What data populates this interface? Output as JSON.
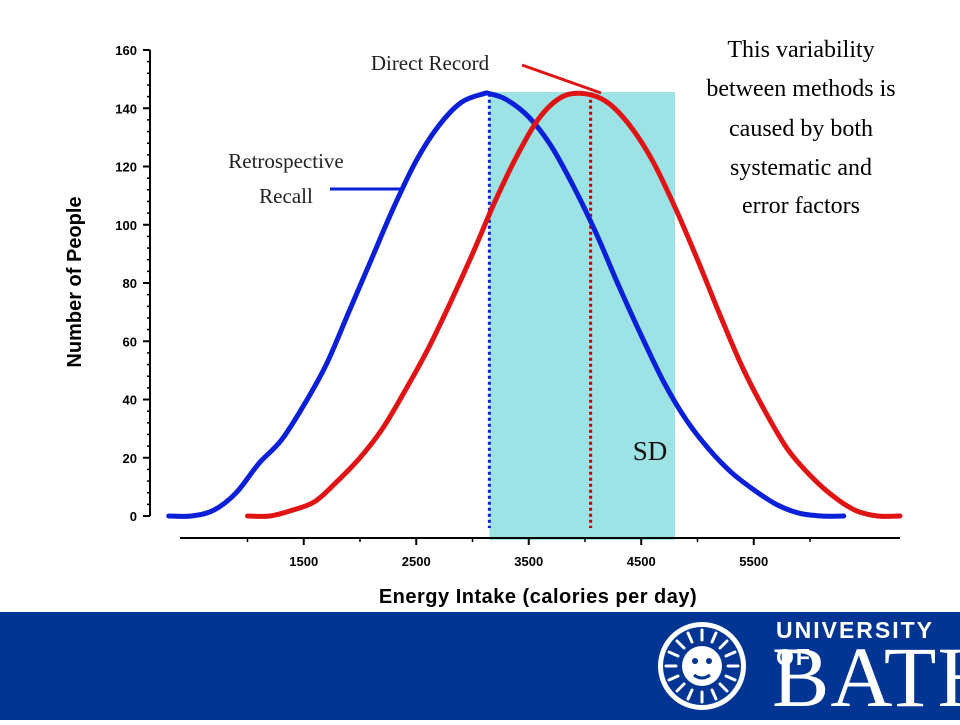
{
  "chart_data": {
    "type": "line",
    "xlabel": "Energy Intake (calories per day)",
    "ylabel": "Number of People",
    "x_ticks": [
      1500,
      2500,
      3500,
      4500,
      5500
    ],
    "y_ticks": [
      0,
      20,
      40,
      60,
      80,
      100,
      120,
      140,
      160
    ],
    "xlim": [
      400,
      6800
    ],
    "ylim": [
      0,
      160
    ],
    "grid": false,
    "series": [
      {
        "name": "Retrospective Recall",
        "color": "#0a1fd8",
        "x": [
          300,
          500,
          700,
          900,
          1100,
          1300,
          1500,
          1700,
          1900,
          2100,
          2300,
          2500,
          2700,
          2900,
          3100,
          3150,
          3300,
          3500,
          3700,
          3900,
          4100,
          4300,
          4500,
          4700,
          4900,
          5100,
          5300,
          5500,
          5700,
          5900,
          6100,
          6300
        ],
        "y": [
          0,
          0,
          2,
          8,
          18,
          26,
          38,
          52,
          70,
          88,
          106,
          122,
          134,
          142,
          145,
          145,
          143,
          137,
          127,
          113,
          97,
          79,
          62,
          46,
          33,
          23,
          15,
          9,
          4,
          1,
          0,
          0
        ]
      },
      {
        "name": "Direct Record",
        "color": "#e01414",
        "x": [
          1000,
          1200,
          1400,
          1600,
          1800,
          2000,
          2200,
          2400,
          2600,
          2800,
          3000,
          3200,
          3400,
          3600,
          3800,
          4000,
          4200,
          4400,
          4600,
          4800,
          5000,
          5200,
          5400,
          5600,
          5800,
          6000,
          6200,
          6400,
          6600,
          6800
        ],
        "y": [
          0,
          0,
          2,
          5,
          12,
          20,
          30,
          43,
          57,
          73,
          90,
          108,
          124,
          137,
          144,
          145,
          142,
          134,
          122,
          106,
          88,
          69,
          51,
          36,
          23,
          14,
          7,
          2,
          0,
          0
        ]
      }
    ],
    "reference_lines": [
      {
        "series": "Retrospective Recall",
        "x": 3150,
        "style": "dotted",
        "color": "#0a1fd8"
      },
      {
        "series": "Direct Record",
        "x": 4050,
        "style": "dotted",
        "color": "#c00000"
      }
    ],
    "shaded_band": {
      "x_from": 3150,
      "x_to": 4800,
      "color": "#9de3e5"
    },
    "annotations": {
      "retrospective_recall": [
        "Retrospective",
        "Recall"
      ],
      "direct_record": "Direct Record",
      "sd": "SD",
      "variability_note": [
        "This variability",
        "between methods is",
        "caused by both",
        "systematic and",
        "error factors"
      ]
    }
  },
  "footer": {
    "university_label": "UNIVERSITY OF",
    "university_name": "BATH",
    "background_color": "#013594"
  }
}
